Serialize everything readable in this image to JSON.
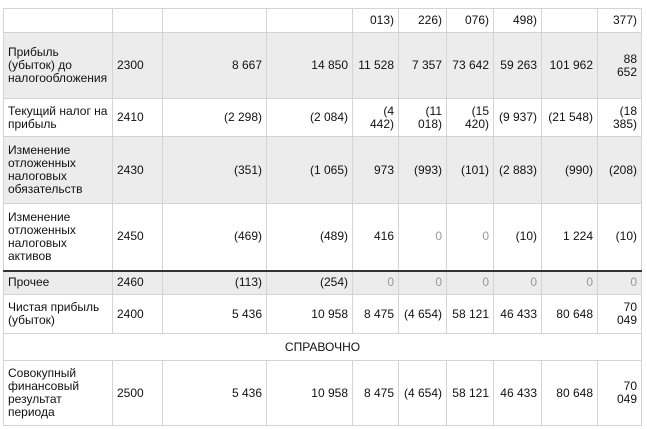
{
  "table": {
    "rows": [
      [
        null,
        null,
        null,
        null,
        "013)",
        "226)",
        "076)",
        "498)",
        null,
        "377)"
      ],
      [
        "Прибыль (убыток) до налогообложения",
        "2300",
        "8 667",
        "14 850",
        "11 528",
        "7 357",
        "73 642",
        "59 263",
        "101 962",
        "88 652"
      ],
      [
        "Текущий налог на прибыль",
        "2410",
        "(2 298)",
        "(2 084)",
        "(4 442)",
        "(11 018)",
        "(15 420)",
        "(9 937)",
        "(21 548)",
        "(18 385)"
      ],
      [
        "Изменение отложенных налоговых обязательств",
        "2430",
        "(351)",
        "(1 065)",
        "973",
        "(993)",
        "(101)",
        "(2 883)",
        "(990)",
        "(208)"
      ],
      [
        "Изменение отложенных налоговых активов",
        "2450",
        "(469)",
        "(489)",
        "416",
        "0",
        "0",
        "(10)",
        "1 224",
        "(10)"
      ],
      [
        "Прочее",
        "2460",
        "(113)",
        "(254)",
        "0",
        "0",
        "0",
        "0",
        "0",
        "0"
      ],
      [
        "Чистая прибыль (убыток)",
        "2400",
        "5 436",
        "10 958",
        "8 475",
        "(4 654)",
        "58 121",
        "46 433",
        "80 648",
        "70 049"
      ],
      [
        "СПРАВОЧНО"
      ],
      [
        "Совокупный финансовый результат периода",
        "2500",
        "5 436",
        "10 958",
        "8 475",
        "(4 654)",
        "58 121",
        "46 433",
        "80 648",
        "70 049"
      ]
    ]
  }
}
